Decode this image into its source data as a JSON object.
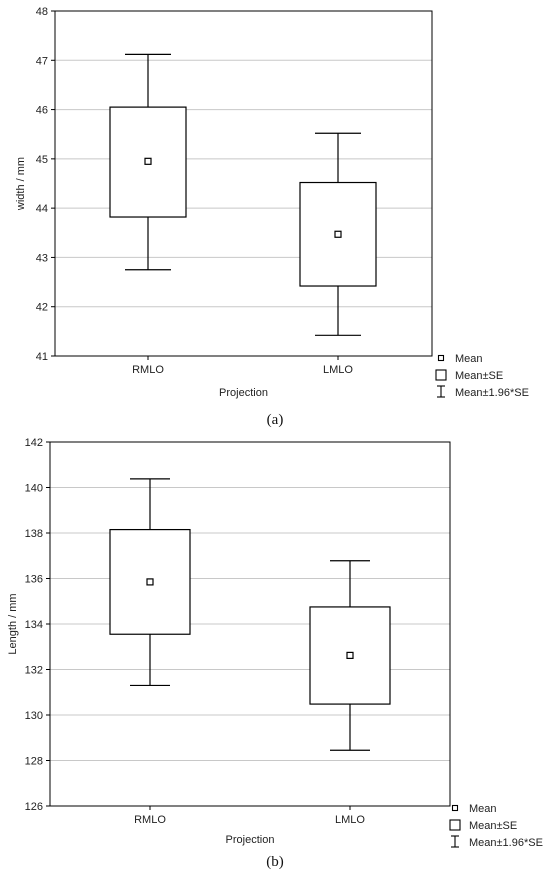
{
  "chart_data": [
    {
      "type": "box",
      "panel_label": "(a)",
      "xlabel": "Projection",
      "ylabel": "width / mm",
      "ylim": [
        41,
        48
      ],
      "yticks": [
        41,
        42,
        43,
        44,
        45,
        46,
        47,
        48
      ],
      "grid": true,
      "categories": [
        "RMLO",
        "LMLO"
      ],
      "series": [
        {
          "category": "RMLO",
          "mean": 44.95,
          "se_low": 43.82,
          "se_high": 46.05,
          "ci_low": 42.75,
          "ci_high": 47.12
        },
        {
          "category": "LMLO",
          "mean": 43.47,
          "se_low": 42.42,
          "se_high": 44.52,
          "ci_low": 41.42,
          "ci_high": 45.52
        }
      ],
      "legend": {
        "position": "bottom-right-outside",
        "entries": [
          "Mean",
          "Mean±SE",
          "Mean±1.96*SE"
        ]
      }
    },
    {
      "type": "box",
      "panel_label": "(b)",
      "xlabel": "Projection",
      "ylabel": "Length / mm",
      "ylim": [
        126,
        142
      ],
      "yticks": [
        126,
        128,
        130,
        132,
        134,
        136,
        138,
        140,
        142
      ],
      "grid": true,
      "categories": [
        "RMLO",
        "LMLO"
      ],
      "series": [
        {
          "category": "RMLO",
          "mean": 135.85,
          "se_low": 133.55,
          "se_high": 138.15,
          "ci_low": 131.3,
          "ci_high": 140.38
        },
        {
          "category": "LMLO",
          "mean": 132.62,
          "se_low": 130.48,
          "se_high": 134.75,
          "ci_low": 128.45,
          "ci_high": 136.78
        }
      ],
      "legend": {
        "position": "bottom-right-outside",
        "entries": [
          "Mean",
          "Mean±SE",
          "Mean±1.96*SE"
        ]
      }
    }
  ]
}
